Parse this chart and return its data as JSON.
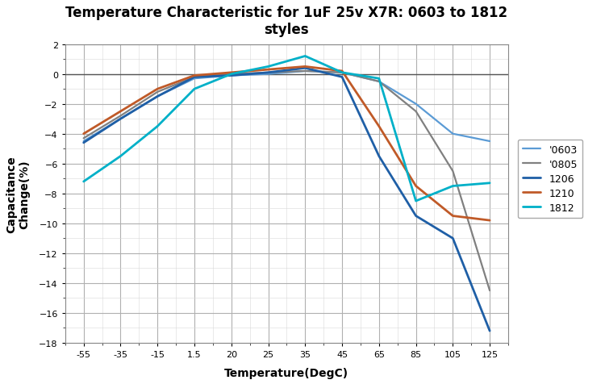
{
  "title": "Temperature Characteristic for 1uF 25v X7R: 0603 to 1812\nstyles",
  "xlabel": "Temperature(DegC)",
  "ylabel": "Capacitance\nChange(%)",
  "x_positions": [
    0,
    1,
    2,
    3,
    4,
    5,
    6,
    7,
    8,
    9,
    10,
    11
  ],
  "x_labels": [
    "-55",
    "-35",
    "-15",
    "1.5",
    "20",
    "25",
    "35",
    "45",
    "65",
    "85",
    "105",
    "125"
  ],
  "ylim": [
    -18,
    2
  ],
  "yticks": [
    2,
    0,
    -2,
    -4,
    -6,
    -8,
    -10,
    -12,
    -14,
    -16,
    -18
  ],
  "series": [
    {
      "label": "'0603",
      "color": "#5B9BD5",
      "linewidth": 1.6,
      "xp": [
        0,
        1,
        2,
        3,
        4,
        5,
        6,
        7,
        8,
        9,
        10,
        11
      ],
      "y": [
        -4.5,
        -3.0,
        -1.5,
        -0.3,
        -0.1,
        0.0,
        0.2,
        0.1,
        -0.5,
        -2.0,
        -4.0,
        -4.5
      ]
    },
    {
      "label": "'0805",
      "color": "#808080",
      "linewidth": 1.6,
      "xp": [
        0,
        1,
        2,
        3,
        4,
        5,
        6,
        7,
        8,
        9,
        10,
        11
      ],
      "y": [
        -4.3,
        -2.8,
        -1.2,
        -0.2,
        0.0,
        0.1,
        0.2,
        0.1,
        -0.5,
        -2.5,
        -6.5,
        -14.5
      ]
    },
    {
      "label": "1206",
      "color": "#1F5FA6",
      "linewidth": 2.0,
      "xp": [
        0,
        1,
        2,
        3,
        4,
        5,
        6,
        7,
        8,
        9,
        10,
        11
      ],
      "y": [
        -4.6,
        -3.0,
        -1.5,
        -0.2,
        -0.1,
        0.1,
        0.4,
        -0.2,
        -5.5,
        -9.5,
        -11.0,
        -17.2
      ]
    },
    {
      "label": "1210",
      "color": "#C05A28",
      "linewidth": 2.0,
      "xp": [
        0,
        1,
        2,
        3,
        4,
        5,
        6,
        7,
        8,
        9,
        10,
        11
      ],
      "y": [
        -4.0,
        -2.5,
        -1.0,
        -0.1,
        0.1,
        0.3,
        0.5,
        0.2,
        -3.5,
        -7.5,
        -9.5,
        -9.8
      ]
    },
    {
      "label": "1812",
      "color": "#00B0C8",
      "linewidth": 2.0,
      "xp": [
        0,
        1,
        2,
        3,
        4,
        5,
        6,
        7,
        8,
        9,
        10,
        11
      ],
      "y": [
        -7.2,
        -5.5,
        -3.5,
        -1.0,
        0.0,
        0.5,
        1.2,
        0.1,
        -0.3,
        -8.5,
        -7.5,
        -7.3
      ]
    }
  ],
  "background_color": "#ffffff",
  "grid_major_color": "#b0b0b0",
  "grid_minor_color": "#d8d8d8",
  "zero_line_color": "#555555"
}
